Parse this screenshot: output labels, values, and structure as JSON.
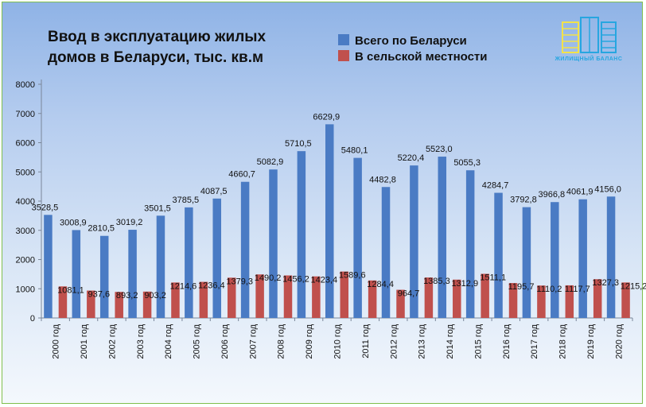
{
  "chart_data": {
    "type": "bar",
    "title_lines": [
      "Ввод в эксплуатацию жилых",
      "домов в Беларуси, тыс. кв.м"
    ],
    "categories": [
      "2000 год",
      "2001 год",
      "2002 год",
      "2003 год",
      "2004 год",
      "2005 год",
      "2006 год",
      "2007 год",
      "2008 год",
      "2009 год",
      "2010 год",
      "2011 год",
      "2012 год",
      "2013 год",
      "2014 год",
      "2015 год",
      "2016 год",
      "2017 год",
      "2018 год",
      "2019 год",
      "2020 год"
    ],
    "series": [
      {
        "name": "Всего по Беларуси",
        "color": "#4a7bc4",
        "values": [
          3528.5,
          3008.9,
          2810.5,
          3019.2,
          3501.5,
          3785.5,
          4087.5,
          4660.7,
          5082.9,
          5710.5,
          6629.9,
          5480.1,
          4482.8,
          5220.4,
          5523.0,
          5055.3,
          4284.7,
          3792.8,
          3966.8,
          4061.9,
          4156.0
        ],
        "labels": [
          "3528,5",
          "3008,9",
          "2810,5",
          "3019,2",
          "3501,5",
          "3785,5",
          "4087,5",
          "4660,7",
          "5082,9",
          "5710,5",
          "6629,9",
          "5480,1",
          "4482,8",
          "5220,4",
          "5523,0",
          "5055,3",
          "4284,7",
          "3792,8",
          "3966,8",
          "4061,9",
          "4156,0"
        ]
      },
      {
        "name": "В сельской местности",
        "color": "#c0504d",
        "values": [
          1081.1,
          937.6,
          893.2,
          903.2,
          1214.6,
          1236.4,
          1379.3,
          1490.2,
          1456.2,
          1423.4,
          1589.6,
          1284.4,
          964.7,
          1385.3,
          1312.9,
          1511.1,
          1195.7,
          1110.2,
          1117.7,
          1327.3,
          1215.2
        ],
        "labels": [
          "1081,1",
          "937,6",
          "893,2",
          "903,2",
          "1214,6",
          "1236,4",
          "1379,3",
          "1490,2",
          "1456,2",
          "1423,4",
          "1589,6",
          "1284,4",
          "964,7",
          "1385,3",
          "1312,9",
          "1511,1",
          "1195,7",
          "1110,2",
          "1117,7",
          "1327,3",
          "1215,2"
        ]
      }
    ],
    "ylim": [
      0,
      8000
    ],
    "yticks": [
      0,
      1000,
      2000,
      3000,
      4000,
      5000,
      6000,
      7000,
      8000
    ],
    "ytick_labels": [
      "0",
      "1000",
      "2000",
      "3000",
      "4000",
      "5000",
      "6000",
      "7000",
      "8000"
    ],
    "legend_position": "top-center",
    "grid": false
  },
  "logo": {
    "text": "ЖИЛИЩНЫЙ БАЛАНС",
    "colors": [
      "#f2e24a",
      "#27a6e0"
    ]
  }
}
